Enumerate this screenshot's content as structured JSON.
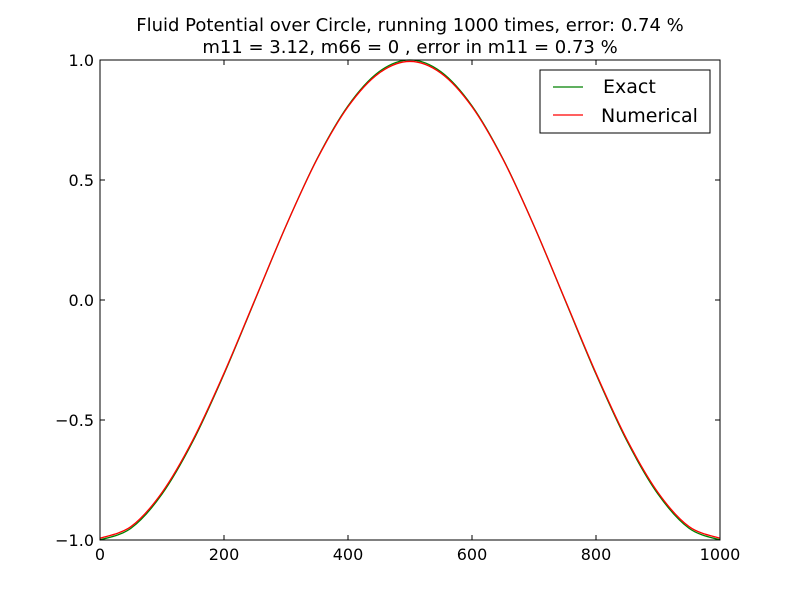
{
  "chart_data": {
    "type": "line",
    "title": "Fluid Potential over Circle, running 1000 times,  error: 0.74 %",
    "subtitle": "m11 = 3.12, m66 = 0 , error in m11 =  0.73 %",
    "xlabel": "",
    "ylabel": "",
    "xlim": [
      0,
      1000
    ],
    "ylim": [
      -1.0,
      1.0
    ],
    "xticks": [
      "0",
      "200",
      "400",
      "600",
      "800",
      "1000"
    ],
    "yticks": [
      "−1.0",
      "−0.5",
      "0.0",
      "0.5",
      "1.0"
    ],
    "grid": false,
    "legend_position": "upper right",
    "x": [
      0,
      50,
      100,
      150,
      200,
      250,
      300,
      350,
      400,
      450,
      500,
      550,
      600,
      650,
      700,
      750,
      800,
      850,
      900,
      950,
      1000
    ],
    "series": [
      {
        "name": "Exact",
        "color": "#008000",
        "values": [
          -1.0,
          -0.951,
          -0.809,
          -0.588,
          -0.309,
          0.0,
          0.309,
          0.588,
          0.809,
          0.951,
          1.0,
          0.951,
          0.809,
          0.588,
          0.309,
          0.0,
          -0.309,
          -0.588,
          -0.809,
          -0.951,
          -1.0
        ]
      },
      {
        "name": "Numerical",
        "color": "#ff0000",
        "values": [
          -0.993,
          -0.944,
          -0.802,
          -0.582,
          -0.305,
          0.002,
          0.309,
          0.586,
          0.805,
          0.945,
          0.994,
          0.945,
          0.805,
          0.586,
          0.309,
          0.002,
          -0.305,
          -0.582,
          -0.802,
          -0.944,
          -0.993
        ]
      }
    ]
  }
}
